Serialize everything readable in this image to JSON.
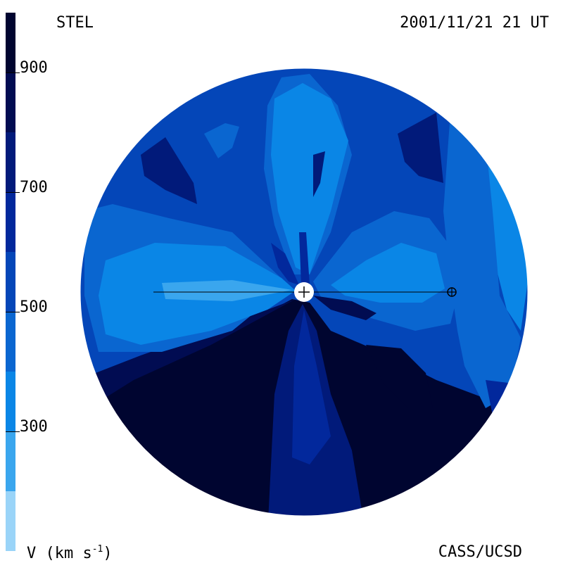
{
  "header": {
    "source": "STEL",
    "timestamp": "2001/11/21 21 UT"
  },
  "footer": {
    "credit": "CASS/UCSD",
    "unit_prefix": "V (km s",
    "unit_exponent": "-1",
    "unit_suffix": ")"
  },
  "colorbar": {
    "ticks": [
      {
        "label": "900",
        "value": 900
      },
      {
        "label": "700",
        "value": 700
      },
      {
        "label": "500",
        "value": 500
      },
      {
        "label": "300",
        "value": 300
      }
    ],
    "range": [
      100,
      1000
    ],
    "levels": [
      {
        "from": 100,
        "to": 200,
        "color": "#9ad4f8"
      },
      {
        "from": 200,
        "to": 300,
        "color": "#3aa6ee"
      },
      {
        "from": 300,
        "to": 400,
        "color": "#0a86e6"
      },
      {
        "from": 400,
        "to": 500,
        "color": "#0a66d0"
      },
      {
        "from": 500,
        "to": 600,
        "color": "#0446b8"
      },
      {
        "from": 600,
        "to": 700,
        "color": "#02289c"
      },
      {
        "from": 700,
        "to": 800,
        "color": "#011a7a"
      },
      {
        "from": 800,
        "to": 900,
        "color": "#010c52"
      },
      {
        "from": 900,
        "to": 1000,
        "color": "#000530"
      }
    ]
  },
  "map": {
    "base_color": "#0446b8",
    "sun_color": "#ffffff",
    "line_color": "#000000"
  }
}
